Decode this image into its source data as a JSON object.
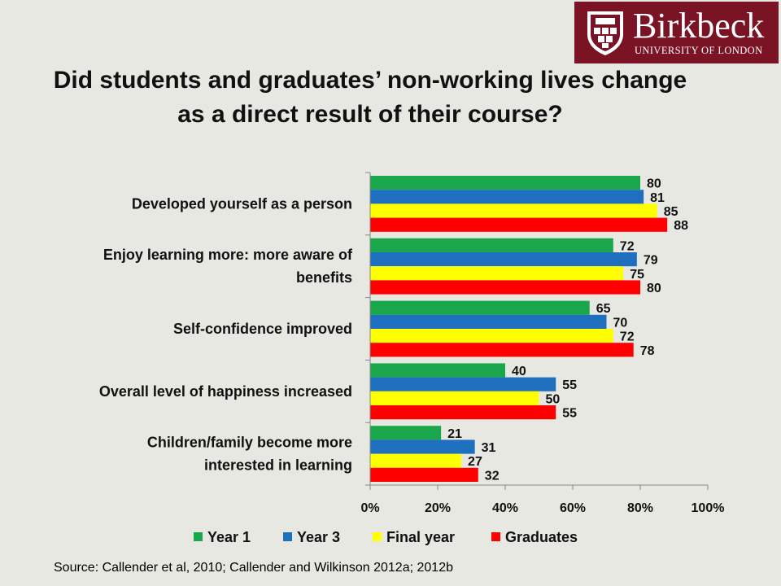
{
  "logo": {
    "name": "Birkbeck",
    "subtitle": "UNIVERSITY OF LONDON",
    "bg_color": "#7a1424"
  },
  "slide": {
    "title_line1": "Did students and graduates’ non-working lives change",
    "title_line2": "as a direct result of their course?",
    "source": "Source: Callender et al, 2010; Callender and Wilkinson 2012a; 2012b"
  },
  "chart_data": {
    "type": "bar",
    "orientation": "horizontal",
    "categories": [
      [
        "Developed yourself as a person"
      ],
      [
        "Enjoy learning more: more aware of",
        "benefits"
      ],
      [
        "Self-confidence improved"
      ],
      [
        "Overall level of happiness increased"
      ],
      [
        "Children/family become more",
        "interested in learning"
      ]
    ],
    "series": [
      {
        "name": "Year 1",
        "color": "#1aa64a",
        "values": [
          80,
          72,
          65,
          40,
          21
        ]
      },
      {
        "name": "Year 3",
        "color": "#1f6fbf",
        "values": [
          81,
          79,
          70,
          55,
          31
        ]
      },
      {
        "name": "Final year",
        "color": "#ffff00",
        "values": [
          85,
          75,
          72,
          50,
          27
        ]
      },
      {
        "name": "Graduates",
        "color": "#ff0000",
        "values": [
          88,
          80,
          78,
          55,
          32
        ]
      }
    ],
    "xlim": [
      0,
      100
    ],
    "xticks": [
      "0%",
      "20%",
      "40%",
      "60%",
      "80%",
      "100%"
    ],
    "legend_position": "bottom",
    "grid": false
  }
}
